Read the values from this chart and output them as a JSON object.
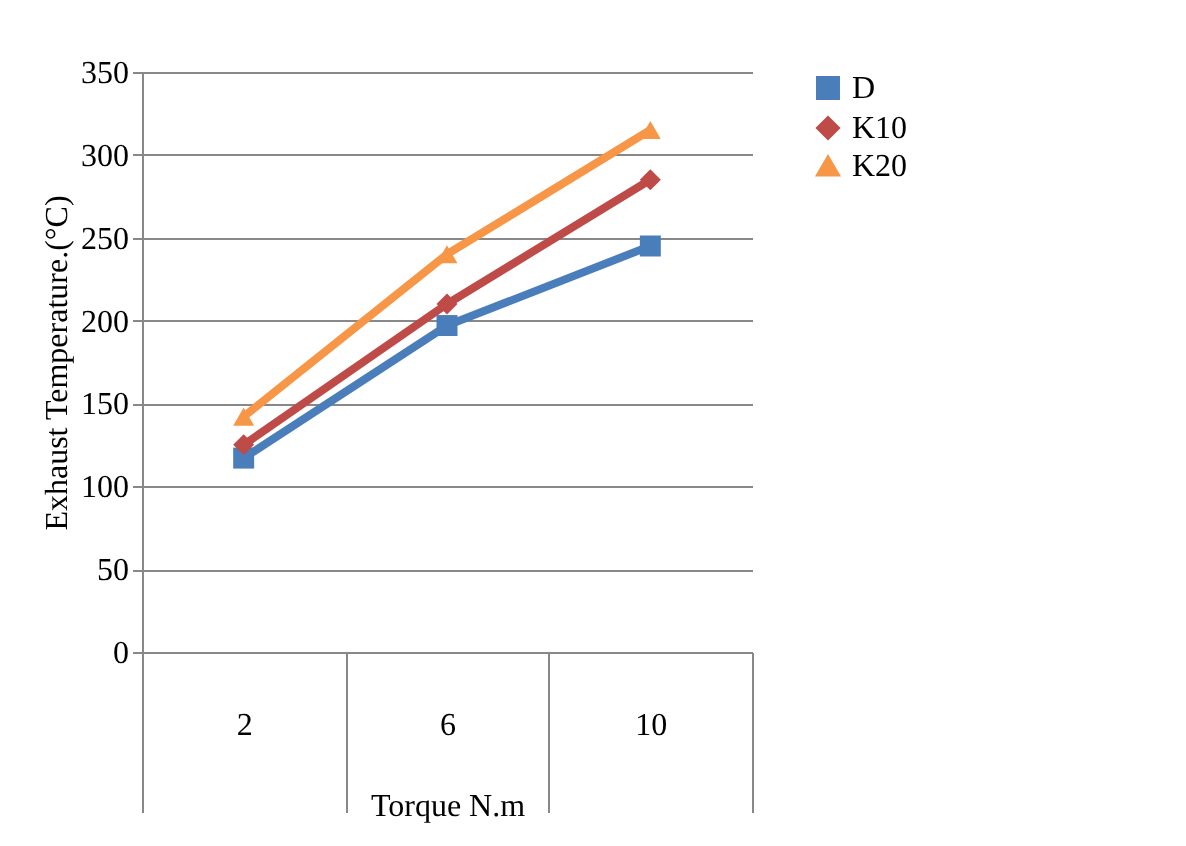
{
  "chart_data": {
    "type": "line",
    "xlabel": "Torque N.m",
    "ylabel": "Exhaust Temperature.(°C)",
    "categories": [
      "2",
      "6",
      "10"
    ],
    "series": [
      {
        "name": "D",
        "color": "#4a7ebb",
        "marker": "square",
        "values": [
          117,
          197,
          245
        ]
      },
      {
        "name": "K10",
        "color": "#be4b48",
        "marker": "diamond",
        "values": [
          125,
          210,
          285
        ]
      },
      {
        "name": "K20",
        "color": "#f79646",
        "marker": "triangle",
        "values": [
          142,
          240,
          315
        ]
      }
    ],
    "ylim": [
      0,
      350
    ],
    "yticks": [
      0,
      50,
      100,
      150,
      200,
      250,
      300,
      350
    ],
    "grid": "y",
    "legend": "right",
    "line_style": "solid"
  }
}
